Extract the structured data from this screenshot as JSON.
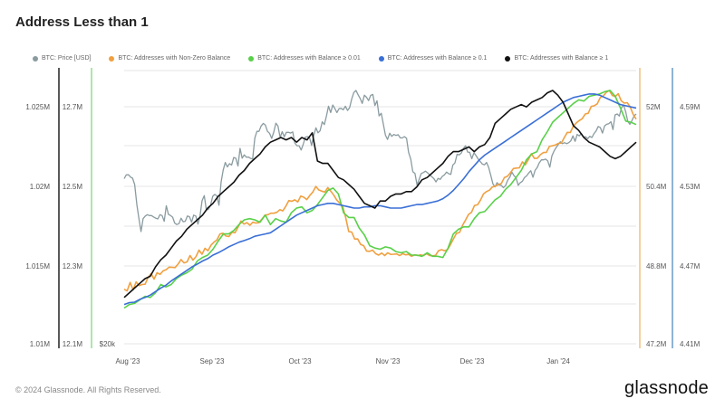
{
  "title": "Address Less than 1",
  "footer": "© 2024 Glassnode. All Rights Reserved.",
  "brand": "glassnode",
  "chart_data": {
    "type": "line",
    "x_labels": [
      "Aug '23",
      "Sep '23",
      "Oct '23",
      "Nov '23",
      "Dec '23",
      "Jan '24"
    ],
    "axes": {
      "a1": {
        "ticks": [
          "1.025M",
          "1.02M",
          "1.015M",
          "1.01M"
        ],
        "color": "#555555"
      },
      "a2": {
        "ticks": [
          "12.7M",
          "12.5M",
          "12.3M",
          "12.1M"
        ],
        "color": "#222222"
      },
      "a3": {
        "ticks": [
          "$20k"
        ],
        "color": "#8ee08e"
      },
      "r1": {
        "ticks": [
          "52M",
          "50.4M",
          "48.8M",
          "47.2M"
        ],
        "color": "#f0c080"
      },
      "r2": {
        "ticks": [
          "4.59M",
          "4.53M",
          "4.47M",
          "4.41M"
        ],
        "color": "#6a9ac8"
      }
    },
    "series": [
      {
        "name": "BTC: Price [USD]",
        "color": "#8a9ba0",
        "values": [
          0.625,
          0.641,
          0.642,
          0.632,
          0.627,
          0.6,
          0.515,
          0.455,
          0.4,
          0.455,
          0.466,
          0.472,
          0.468,
          0.468,
          0.462,
          0.457,
          0.454,
          0.472,
          0.468,
          0.444,
          0.51,
          0.474,
          0.468,
          0.461,
          0.436,
          0.43,
          0.434,
          0.457,
          0.442,
          0.444,
          0.466,
          0.463,
          0.44,
          0.47,
          0.466,
          0.432,
          0.467,
          0.532,
          0.553,
          0.492,
          0.495,
          0.511,
          0.55,
          0.558,
          0.552,
          0.512,
          0.611,
          0.662,
          0.694,
          0.675,
          0.689,
          0.683,
          0.715,
          0.712,
          0.679,
          0.754,
          0.712,
          0.726,
          0.716,
          0.717,
          0.711,
          0.709,
          0.798,
          0.826,
          0.826,
          0.849,
          0.86,
          0.853,
          0.826,
          0.818,
          0.796,
          0.823,
          0.861,
          0.849,
          0.8,
          0.825,
          0.803,
          0.822,
          0.822,
          0.819,
          0.824,
          0.777,
          0.765,
          0.765,
          0.747,
          0.771,
          0.802,
          0.804,
          0.799,
          0.766,
          0.81,
          0.841,
          0.82,
          0.829,
          0.867,
          0.855,
          0.891,
          0.933,
          0.906,
          0.938,
          0.923,
          0.906,
          0.923,
          0.924,
          0.918,
          0.933,
          0.915,
          0.927,
          0.964,
          0.991,
          1.0,
          0.982,
          0.966,
          0.945,
          0.98,
          0.971,
          0.957,
          0.979,
          0.983,
          0.936,
          0.956,
          0.892,
          0.903,
          0.857,
          0.81,
          0.792,
          0.818,
          0.805,
          0.813,
          0.809,
          0.812,
          0.799,
          0.798,
          0.804,
          0.797,
          0.736,
          0.709,
          0.655,
          0.647,
          0.598,
          0.622,
          0.647,
          0.651,
          0.657,
          0.65,
          0.641,
          0.633,
          0.625,
          0.611,
          0.626,
          0.622,
          0.635,
          0.641,
          0.653,
          0.646,
          0.643,
          0.683,
          0.692,
          0.729,
          0.726,
          0.734,
          0.753,
          0.765,
          0.738,
          0.737,
          0.71,
          0.735,
          0.723,
          0.709,
          0.698,
          0.687,
          0.684,
          0.694,
          0.673,
          0.638,
          0.603,
          0.59,
          0.608,
          0.598,
          0.596,
          0.587,
          0.595,
          0.618,
          0.631,
          0.653,
          0.638,
          0.628,
          0.597,
          0.608,
          0.614,
          0.63,
          0.637,
          0.649,
          0.659,
          0.631,
          0.66,
          0.672,
          0.692,
          0.705,
          0.705,
          0.708,
          0.701,
          0.674,
          0.722,
          0.742,
          0.757,
          0.77,
          0.782,
          0.774,
          0.778,
          0.774,
          0.778,
          0.786,
          0.807,
          0.784,
          0.813,
          0.807,
          0.817,
          0.802,
          0.803,
          0.795,
          0.805,
          0.8,
          0.817,
          0.828,
          0.847,
          0.842,
          0.819,
          0.849,
          0.856,
          0.859,
          0.867,
          0.834,
          0.896,
          0.9,
          0.891,
          0.925,
          0.939,
          0.91,
          0.869,
          0.856,
          0.872,
          0.892,
          0.9
        ]
      },
      {
        "name": "BTC: Addresses with Non-Zero Balance",
        "color": "#f0a040",
        "values": [
          0.155,
          0.148,
          0.184,
          0.152,
          0.186,
          0.17,
          0.175,
          0.176,
          0.205,
          0.221,
          0.198,
          0.225,
          0.218,
          0.233,
          0.238,
          0.249,
          0.248,
          0.247,
          0.262,
          0.281,
          0.267,
          0.271,
          0.298,
          0.279,
          0.294,
          0.321,
          0.304,
          0.329,
          0.319,
          0.342,
          0.355,
          0.365,
          0.39,
          0.393,
          0.381,
          0.379,
          0.397,
          0.395,
          0.418,
          0.445,
          0.432,
          0.438,
          0.427,
          0.44,
          0.436,
          0.438,
          0.453,
          0.47,
          0.472,
          0.478,
          0.478,
          0.482,
          0.493,
          0.488,
          0.508,
          0.532,
          0.529,
          0.535,
          0.526,
          0.551,
          0.546,
          0.536,
          0.554,
          0.568,
          0.592,
          0.577,
          0.572,
          0.568,
          0.587,
          0.572,
          0.555,
          0.534,
          0.521,
          0.506,
          0.459,
          0.4,
          0.398,
          0.368,
          0.369,
          0.345,
          0.34,
          0.317,
          0.316,
          0.321,
          0.306,
          0.3,
          0.309,
          0.298,
          0.31,
          0.303,
          0.304,
          0.305,
          0.298,
          0.306,
          0.301,
          0.303,
          0.295,
          0.301,
          0.298,
          0.301,
          0.298,
          0.306,
          0.298,
          0.297,
          0.299,
          0.319,
          0.323,
          0.319,
          0.323,
          0.345,
          0.37,
          0.393,
          0.396,
          0.427,
          0.449,
          0.473,
          0.482,
          0.511,
          0.514,
          0.534,
          0.56,
          0.57,
          0.576,
          0.59,
          0.593,
          0.6,
          0.605,
          0.63,
          0.635,
          0.65,
          0.668,
          0.67,
          0.671,
          0.696,
          0.684,
          0.707,
          0.731,
          0.711,
          0.712,
          0.727,
          0.736,
          0.737,
          0.762,
          0.765,
          0.768,
          0.775,
          0.776,
          0.8,
          0.822,
          0.821,
          0.848,
          0.862,
          0.872,
          0.88,
          0.9,
          0.903,
          0.932,
          0.935,
          0.943,
          0.97,
          0.977,
          0.992,
          1.0,
          0.979,
          0.974,
          0.986,
          0.956,
          0.946,
          0.948,
          0.93,
          0.898,
          0.878
        ],
        "x_start": 0.0,
        "x_end": 1.0
      },
      {
        "name": "BTC: Addresses with Balance ≥ 0.01",
        "color": "#59d04a",
        "values": [
          0.075,
          0.09,
          0.095,
          0.11,
          0.125,
          0.12,
          0.14,
          0.175,
          0.165,
          0.175,
          0.2,
          0.215,
          0.225,
          0.24,
          0.275,
          0.29,
          0.3,
          0.325,
          0.36,
          0.39,
          0.39,
          0.405,
          0.43,
          0.45,
          0.455,
          0.45,
          0.44,
          0.47,
          0.43,
          0.455,
          0.445,
          0.44,
          0.48,
          0.5,
          0.505,
          0.48,
          0.49,
          0.515,
          0.545,
          0.575,
          0.585,
          0.56,
          0.48,
          0.46,
          0.46,
          0.415,
          0.385,
          0.34,
          0.33,
          0.325,
          0.335,
          0.33,
          0.315,
          0.31,
          0.315,
          0.3,
          0.3,
          0.295,
          0.31,
          0.295,
          0.295,
          0.29,
          0.33,
          0.39,
          0.41,
          0.42,
          0.42,
          0.455,
          0.48,
          0.485,
          0.51,
          0.535,
          0.55,
          0.58,
          0.6,
          0.63,
          0.66,
          0.705,
          0.73,
          0.74,
          0.79,
          0.825,
          0.865,
          0.885,
          0.905,
          0.925,
          0.945,
          0.96,
          0.955,
          0.975,
          0.98,
          0.985,
          0.995,
          1.0,
          0.975,
          0.925,
          0.87,
          0.865,
          0.855
        ],
        "x_start": 0.0,
        "x_end": 1.0
      },
      {
        "name": "BTC: Addresses with Balance ≥ 0.1",
        "color": "#3a6fd6",
        "values": [
          0.09,
          0.098,
          0.1,
          0.112,
          0.12,
          0.13,
          0.145,
          0.16,
          0.172,
          0.19,
          0.205,
          0.22,
          0.235,
          0.25,
          0.262,
          0.275,
          0.285,
          0.3,
          0.31,
          0.322,
          0.335,
          0.345,
          0.355,
          0.362,
          0.37,
          0.38,
          0.385,
          0.39,
          0.395,
          0.41,
          0.425,
          0.44,
          0.455,
          0.47,
          0.48,
          0.49,
          0.5,
          0.51,
          0.515,
          0.52,
          0.52,
          0.515,
          0.51,
          0.505,
          0.5,
          0.5,
          0.505,
          0.505,
          0.51,
          0.51,
          0.505,
          0.5,
          0.5,
          0.5,
          0.505,
          0.51,
          0.515,
          0.515,
          0.52,
          0.525,
          0.53,
          0.54,
          0.555,
          0.575,
          0.6,
          0.625,
          0.655,
          0.68,
          0.705,
          0.725,
          0.74,
          0.755,
          0.77,
          0.785,
          0.8,
          0.815,
          0.83,
          0.845,
          0.86,
          0.875,
          0.89,
          0.905,
          0.92,
          0.935,
          0.95,
          0.96,
          0.97,
          0.975,
          0.98,
          0.985,
          0.985,
          0.98,
          0.97,
          0.96,
          0.95,
          0.94,
          0.935,
          0.93,
          0.925
        ],
        "x_start": 0.0,
        "x_end": 1.0
      },
      {
        "name": "BTC: Addresses with Balance ≥ 1",
        "color": "#111111",
        "values": [
          0.12,
          0.14,
          0.16,
          0.18,
          0.2,
          0.21,
          0.25,
          0.28,
          0.3,
          0.33,
          0.36,
          0.38,
          0.41,
          0.43,
          0.45,
          0.47,
          0.5,
          0.52,
          0.55,
          0.57,
          0.59,
          0.61,
          0.64,
          0.66,
          0.69,
          0.71,
          0.73,
          0.76,
          0.78,
          0.79,
          0.8,
          0.79,
          0.8,
          0.78,
          0.8,
          0.79,
          0.82,
          0.7,
          0.69,
          0.69,
          0.66,
          0.63,
          0.62,
          0.6,
          0.58,
          0.55,
          0.52,
          0.51,
          0.5,
          0.53,
          0.53,
          0.55,
          0.56,
          0.56,
          0.57,
          0.57,
          0.59,
          0.62,
          0.63,
          0.65,
          0.67,
          0.69,
          0.72,
          0.74,
          0.74,
          0.75,
          0.76,
          0.74,
          0.76,
          0.77,
          0.8,
          0.86,
          0.88,
          0.9,
          0.92,
          0.93,
          0.94,
          0.93,
          0.95,
          0.96,
          0.97,
          0.99,
          1.0,
          0.98,
          0.95,
          0.9,
          0.85,
          0.83,
          0.8,
          0.78,
          0.77,
          0.76,
          0.74,
          0.72,
          0.71,
          0.72,
          0.74,
          0.76,
          0.78
        ],
        "x_start": 0.0,
        "x_end": 1.0
      }
    ]
  }
}
